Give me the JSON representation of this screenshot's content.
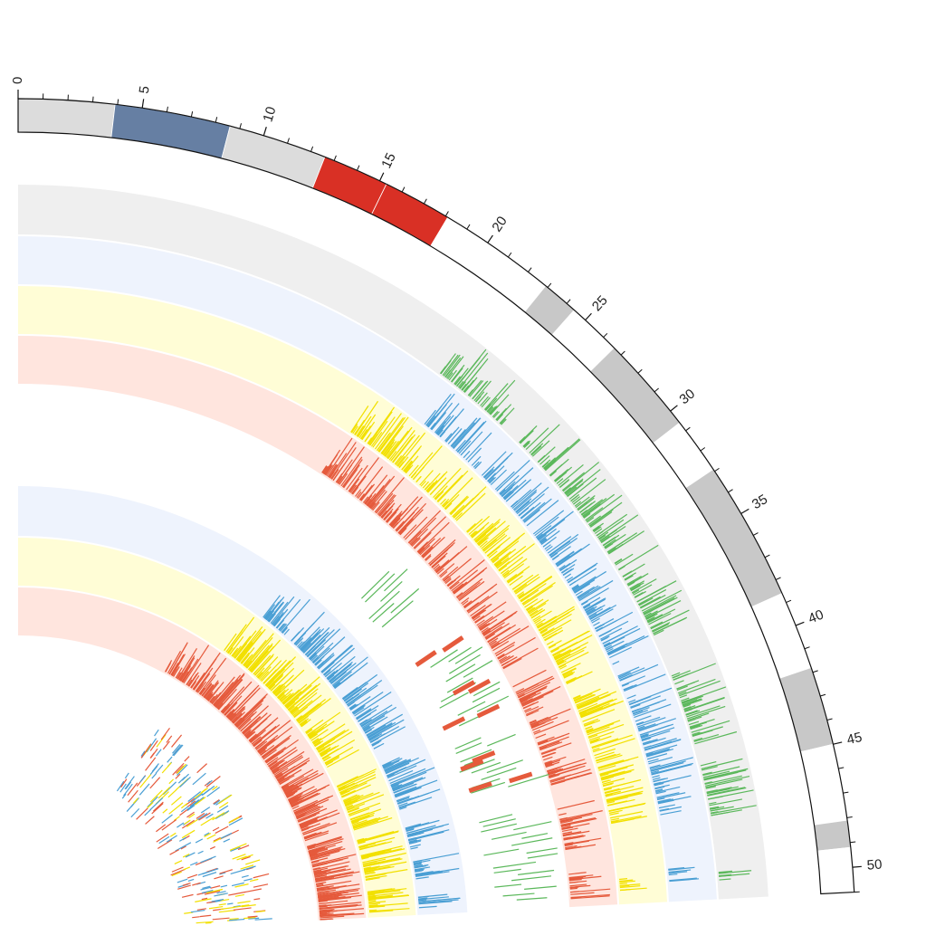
{
  "chart_data": {
    "type": "circos",
    "title": "",
    "scale": {
      "min": 0,
      "max": 51,
      "major_ticks": [
        0,
        5,
        10,
        15,
        20,
        25,
        30,
        35,
        40,
        45,
        50
      ],
      "tick_labels": [
        "0",
        "5",
        "10",
        "15",
        "20",
        "25",
        "30",
        "35",
        "40",
        "45",
        "50"
      ]
    },
    "ideogram_bands": [
      {
        "start": 0.0,
        "end": 3.9,
        "color": "#dcdcdc"
      },
      {
        "start": 3.9,
        "end": 8.6,
        "color": "#667fa3"
      },
      {
        "start": 8.6,
        "end": 12.6,
        "color": "#dcdcdc"
      },
      {
        "start": 12.6,
        "end": 15.3,
        "color": "#d93025"
      },
      {
        "start": 15.3,
        "end": 18.1,
        "color": "#d93025"
      },
      {
        "start": 18.1,
        "end": 22.9,
        "color": "#ffffff"
      },
      {
        "start": 22.9,
        "end": 24.4,
        "color": "#c8c8c8"
      },
      {
        "start": 24.4,
        "end": 26.6,
        "color": "#ffffff"
      },
      {
        "start": 26.6,
        "end": 30.6,
        "color": "#c8c8c8"
      },
      {
        "start": 30.6,
        "end": 32.9,
        "color": "#ffffff"
      },
      {
        "start": 32.9,
        "end": 38.6,
        "color": "#c8c8c8"
      },
      {
        "start": 38.6,
        "end": 41.8,
        "color": "#ffffff"
      },
      {
        "start": 41.8,
        "end": 45.0,
        "color": "#c8c8c8"
      },
      {
        "start": 45.0,
        "end": 48.1,
        "color": "#ffffff"
      },
      {
        "start": 48.1,
        "end": 49.2,
        "color": "#c8c8c8"
      },
      {
        "start": 49.2,
        "end": 51.0,
        "color": "#ffffff"
      }
    ],
    "tracks": [
      {
        "kind": "histogram",
        "color": "#5bb85b",
        "background": "#efefef",
        "intervals": [
          [
            21.5,
            25.5
          ],
          [
            26.5,
            33.5
          ],
          [
            34.0,
            38.0
          ],
          [
            40.0,
            43.5
          ],
          [
            44.5,
            47.0
          ],
          [
            49.6,
            50.2
          ]
        ],
        "seed": 11
      },
      {
        "kind": "histogram",
        "color": "#4a9fd4",
        "background": "#eef3fd",
        "intervals": [
          [
            22.5,
            26.0
          ],
          [
            26.5,
            30.0
          ],
          [
            30.5,
            38.5
          ],
          [
            39.0,
            46.5
          ],
          [
            49.3,
            50.0
          ]
        ],
        "seed": 23
      },
      {
        "kind": "histogram",
        "color": "#f2e000",
        "background": "#fffdd6",
        "intervals": [
          [
            19.5,
            27.5
          ],
          [
            28.0,
            38.5
          ],
          [
            39.0,
            46.5
          ],
          [
            49.6,
            50.3
          ]
        ],
        "seed": 37
      },
      {
        "kind": "histogram",
        "color": "#e55a3c",
        "background": "#ffe5de",
        "intervals": [
          [
            19.3,
            36.0
          ],
          [
            37.0,
            43.5
          ],
          [
            45.0,
            47.5
          ],
          [
            49.0,
            50.5
          ]
        ],
        "seed": 41
      },
      {
        "kind": "histogram",
        "color": "#4a9fd4",
        "background": "#eef3fd",
        "intervals": [
          [
            22.0,
            24.5
          ],
          [
            25.0,
            30.5
          ],
          [
            31.5,
            36.5
          ],
          [
            38.0,
            42.0
          ],
          [
            43.5,
            45.5
          ],
          [
            46.5,
            48.0
          ],
          [
            49.5,
            50.5
          ]
        ],
        "seed": 53
      },
      {
        "kind": "histogram",
        "color": "#f2e000",
        "background": "#fffdd6",
        "intervals": [
          [
            21.0,
            31.5
          ],
          [
            32.0,
            36.0
          ],
          [
            38.0,
            42.5
          ],
          [
            43.5,
            44.5
          ],
          [
            45.0,
            47.5
          ],
          [
            48.5,
            50.5
          ]
        ],
        "seed": 67
      },
      {
        "kind": "histogram",
        "color": "#e55a3c",
        "background": "#ffe5de",
        "intervals": [
          [
            17.0,
            42.0
          ],
          [
            42.5,
            49.5
          ],
          [
            49.5,
            51.0
          ]
        ],
        "seed": 79
      },
      {
        "kind": "tiles",
        "intervals": [
          [
            20.0,
            24.5
          ],
          [
            25.5,
            28.0
          ],
          [
            28.5,
            31.5
          ],
          [
            32.0,
            35.0
          ],
          [
            36.0,
            38.5
          ],
          [
            39.5,
            40.5
          ],
          [
            41.0,
            43.5
          ],
          [
            44.0,
            47.0
          ],
          [
            47.5,
            50.5
          ]
        ],
        "colors": [
          "#4a9fd4",
          "#f2e000",
          "#e55a3c"
        ],
        "seed": 97
      }
    ],
    "links": [
      {
        "color": "#5bb85b",
        "intervals": [
          [
            26.5,
            29.3
          ],
          [
            33.2,
            38.0
          ],
          [
            39.0,
            43.0
          ],
          [
            44.5,
            50.5
          ]
        ],
        "seed": 5
      },
      {
        "color": "#e55a3c",
        "intervals": [
          [
            32.6,
            33.0
          ],
          [
            35.5,
            36.3
          ],
          [
            37.4,
            37.9
          ],
          [
            40.3,
            40.8
          ],
          [
            42.2,
            42.6
          ]
        ],
        "seed": 7
      }
    ]
  }
}
